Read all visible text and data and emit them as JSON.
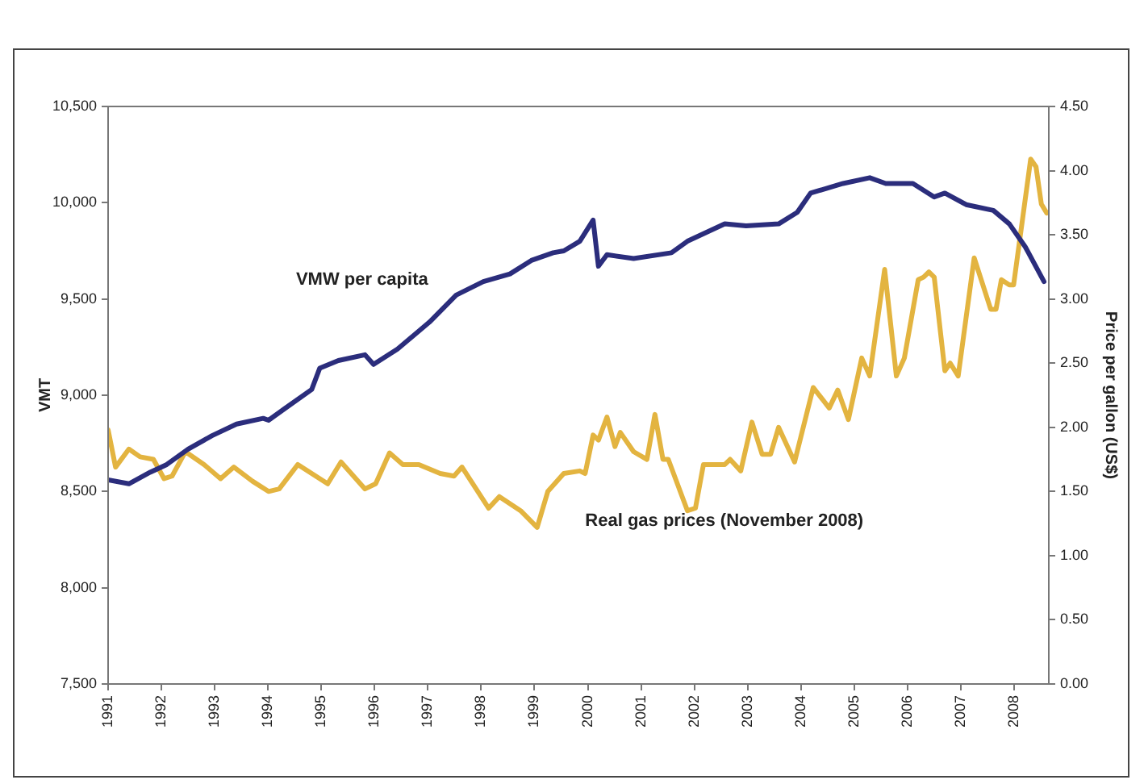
{
  "chart_data": {
    "type": "line",
    "ylabel": "VMT",
    "y2label": "Price per gallon (US$)",
    "xlim": [
      1991,
      2008.65
    ],
    "xticks": [
      1991,
      1992,
      1993,
      1994,
      1995,
      1996,
      1997,
      1998,
      1999,
      2000,
      2001,
      2002,
      2003,
      2004,
      2005,
      2006,
      2007,
      2008
    ],
    "ylim": [
      7500,
      10500
    ],
    "yticks": [
      {
        "value": 7500,
        "label": "7,500"
      },
      {
        "value": 8000,
        "label": "8,000"
      },
      {
        "value": 8500,
        "label": "8,500"
      },
      {
        "value": 9000,
        "label": "9,000"
      },
      {
        "value": 9500,
        "label": "9,500"
      },
      {
        "value": 10000,
        "label": "10,000"
      },
      {
        "value": 10500,
        "label": "10,500"
      }
    ],
    "y2lim": [
      0,
      4.5
    ],
    "y2ticks": [
      {
        "value": 0,
        "label": "0.00"
      },
      {
        "value": 0.5,
        "label": "0.50"
      },
      {
        "value": 1,
        "label": "1.00"
      },
      {
        "value": 1.5,
        "label": "1.50"
      },
      {
        "value": 2,
        "label": "2.00"
      },
      {
        "value": 2.5,
        "label": "2.50"
      },
      {
        "value": 3,
        "label": "3.00"
      },
      {
        "value": 3.5,
        "label": "3.50"
      },
      {
        "value": 4,
        "label": "4.00"
      },
      {
        "value": 4.5,
        "label": "4.50"
      }
    ],
    "series": [
      {
        "name": "VMW per capita",
        "color": "#2b2d7c",
        "x": [
          1991,
          1991.39,
          1991.79,
          1992.1,
          1992.5,
          1992.95,
          1993.41,
          1993.91,
          1994.01,
          1994.31,
          1994.82,
          1994.97,
          1995.32,
          1995.82,
          1995.98,
          1996.43,
          1997.03,
          1997.53,
          1998.04,
          1998.54,
          1998.94,
          1999.35,
          1999.55,
          1999.85,
          2000.1,
          2000.2,
          2000.36,
          2000.86,
          2001.57,
          2001.87,
          2002.57,
          2002.97,
          2003.58,
          2003.93,
          2004.18,
          2004.79,
          2005.29,
          2005.59,
          2006.1,
          2006.5,
          2006.7,
          2007.1,
          2007.61,
          2007.91,
          2008.21,
          2008.56
        ],
        "values": [
          8560,
          8540,
          8600,
          8640,
          8720,
          8790,
          8850,
          8880,
          8870,
          8930,
          9030,
          9140,
          9180,
          9210,
          9160,
          9240,
          9380,
          9520,
          9590,
          9630,
          9700,
          9740,
          9750,
          9800,
          9910,
          9670,
          9730,
          9710,
          9740,
          9800,
          9890,
          9880,
          9890,
          9950,
          10050,
          10100,
          10130,
          10100,
          10100,
          10030,
          10050,
          9990,
          9960,
          9890,
          9770,
          9590
        ]
      },
      {
        "name": "Real gas prices (November 2008)",
        "color": "#e3b440",
        "axis": "y2",
        "x": [
          1991,
          1991.14,
          1991.39,
          1991.6,
          1991.85,
          1992.05,
          1992.2,
          1992.45,
          1992.8,
          1993.11,
          1993.36,
          1993.71,
          1994.01,
          1994.21,
          1994.56,
          1995.12,
          1995.37,
          1995.82,
          1996.02,
          1996.28,
          1996.53,
          1996.83,
          1997.23,
          1997.49,
          1997.64,
          1998.14,
          1998.34,
          1998.74,
          1999.05,
          1999.25,
          1999.55,
          1999.85,
          1999.95,
          2000.1,
          2000.2,
          2000.36,
          2000.51,
          2000.61,
          2000.86,
          2001.11,
          2001.26,
          2001.41,
          2001.51,
          2001.87,
          2002.02,
          2002.17,
          2002.57,
          2002.67,
          2002.87,
          2003.08,
          2003.27,
          2003.43,
          2003.58,
          2003.88,
          2004.23,
          2004.53,
          2004.69,
          2004.89,
          2005.14,
          2005.29,
          2005.57,
          2005.79,
          2005.94,
          2006.2,
          2006.3,
          2006.4,
          2006.5,
          2006.7,
          2006.8,
          2006.95,
          2007.25,
          2007.56,
          2007.66,
          2007.76,
          2007.91,
          2007.99,
          2008.31,
          2008.41,
          2008.51,
          2008.61
        ],
        "values": [
          1.98,
          1.69,
          1.83,
          1.77,
          1.75,
          1.6,
          1.62,
          1.81,
          1.71,
          1.6,
          1.69,
          1.58,
          1.5,
          1.52,
          1.71,
          1.56,
          1.73,
          1.52,
          1.56,
          1.8,
          1.71,
          1.71,
          1.64,
          1.62,
          1.69,
          1.37,
          1.46,
          1.35,
          1.22,
          1.5,
          1.64,
          1.66,
          1.64,
          1.94,
          1.9,
          2.08,
          1.85,
          1.96,
          1.81,
          1.75,
          2.1,
          1.75,
          1.75,
          1.35,
          1.37,
          1.71,
          1.71,
          1.75,
          1.66,
          2.04,
          1.79,
          1.79,
          2.0,
          1.73,
          2.31,
          2.15,
          2.29,
          2.06,
          2.54,
          2.4,
          3.23,
          2.4,
          2.54,
          3.15,
          3.17,
          3.21,
          3.17,
          2.44,
          2.5,
          2.4,
          3.32,
          2.92,
          2.92,
          3.15,
          3.11,
          3.11,
          4.09,
          4.03,
          3.74,
          3.67
        ]
      }
    ]
  }
}
